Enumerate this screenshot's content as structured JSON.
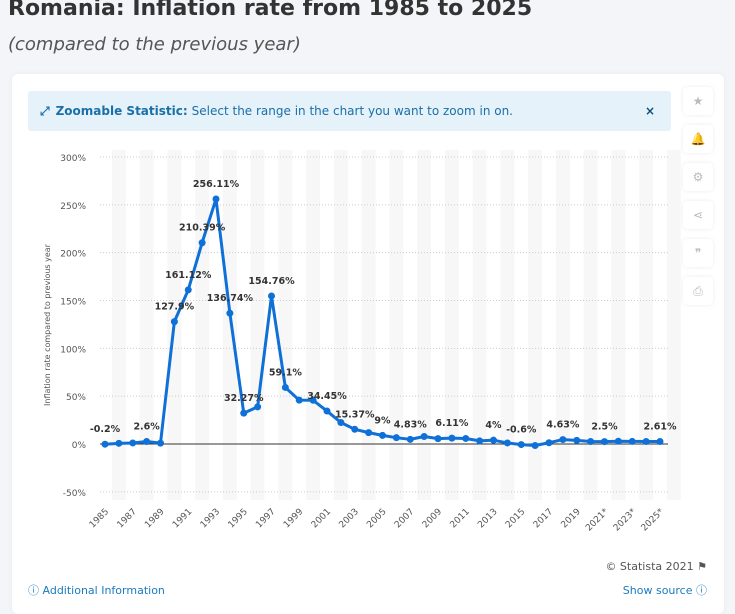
{
  "header": {
    "title": "Romania: Inflation rate from 1985 to 2025",
    "subtitle": "(compared to the previous year)"
  },
  "banner": {
    "label": "Zoomable Statistic:",
    "text": "Select the range in the chart you want to zoom in on.",
    "close": "×",
    "icon": "expand-icon"
  },
  "sidebar": [
    {
      "icon": "star-icon",
      "glyph": "★"
    },
    {
      "icon": "bell-icon",
      "glyph": "🔔"
    },
    {
      "icon": "gear-icon",
      "glyph": "⚙"
    },
    {
      "icon": "share-icon",
      "glyph": "⋖"
    },
    {
      "icon": "quote-icon",
      "glyph": "❞"
    },
    {
      "icon": "print-icon",
      "glyph": "⎙"
    }
  ],
  "footer": {
    "additional": "Additional Information",
    "copyright": "© Statista 2021",
    "source": "Show source"
  },
  "colors": {
    "line": "#0f70d7",
    "band": "#f7f7f7"
  },
  "chart_data": {
    "type": "line",
    "title": "Romania: Inflation rate from 1985 to 2025",
    "ylabel": "Inflation rate compared to previous year",
    "xlabel": "",
    "ylim": [
      -50,
      300
    ],
    "yticks": [
      "-50%",
      "0%",
      "50%",
      "100%",
      "150%",
      "200%",
      "250%",
      "300%"
    ],
    "ytick_values": [
      -50,
      0,
      50,
      100,
      150,
      200,
      250,
      300
    ],
    "xtick_labels": [
      "1985",
      "1987",
      "1989",
      "1991",
      "1993",
      "1995",
      "1997",
      "1999",
      "2001",
      "2003",
      "2005",
      "2007",
      "2009",
      "2011",
      "2013",
      "2015",
      "2017",
      "2019",
      "2021*",
      "2023*",
      "2025*"
    ],
    "x": [
      1985,
      1986,
      1987,
      1988,
      1989,
      1990,
      1991,
      1992,
      1993,
      1994,
      1995,
      1996,
      1997,
      1998,
      1999,
      2000,
      2001,
      2002,
      2003,
      2004,
      2005,
      2006,
      2007,
      2008,
      2009,
      2010,
      2011,
      2012,
      2013,
      2014,
      2015,
      2016,
      2017,
      2018,
      2019,
      2020,
      2021,
      2022,
      2023,
      2024,
      2025
    ],
    "values": [
      -0.2,
      0.7,
      1.1,
      2.6,
      0.9,
      127.9,
      161.12,
      210.39,
      256.11,
      136.74,
      32.27,
      38.8,
      154.76,
      59.1,
      45.8,
      45.67,
      34.45,
      22.5,
      15.37,
      11.9,
      9,
      6.6,
      4.83,
      7.85,
      5.6,
      6.11,
      5.79,
      3.3,
      4,
      1.1,
      -0.6,
      -1.6,
      1.3,
      4.63,
      3.8,
      2.6,
      2.5,
      2.9,
      2.7,
      2.6,
      2.61
    ],
    "data_labels": [
      {
        "year": 1985,
        "text": "-0.2%"
      },
      {
        "year": 1988,
        "text": "2.6%"
      },
      {
        "year": 1990,
        "text": "127.9%"
      },
      {
        "year": 1991,
        "text": "161.12%"
      },
      {
        "year": 1992,
        "text": "210.39%"
      },
      {
        "year": 1993,
        "text": "256.11%"
      },
      {
        "year": 1994,
        "text": "136.74%"
      },
      {
        "year": 1995,
        "text": "32.27%"
      },
      {
        "year": 1997,
        "text": "154.76%"
      },
      {
        "year": 1998,
        "text": "59.1%"
      },
      {
        "year": 2001,
        "text": "34.45%"
      },
      {
        "year": 2003,
        "text": "15.37%"
      },
      {
        "year": 2005,
        "text": "9%"
      },
      {
        "year": 2007,
        "text": "4.83%"
      },
      {
        "year": 2010,
        "text": "6.11%"
      },
      {
        "year": 2013,
        "text": "4%"
      },
      {
        "year": 2015,
        "text": "-0.6%"
      },
      {
        "year": 2018,
        "text": "4.63%"
      },
      {
        "year": 2021,
        "text": "2.5%"
      },
      {
        "year": 2025,
        "text": "2.61%"
      }
    ],
    "grid": true,
    "legend": "none"
  }
}
